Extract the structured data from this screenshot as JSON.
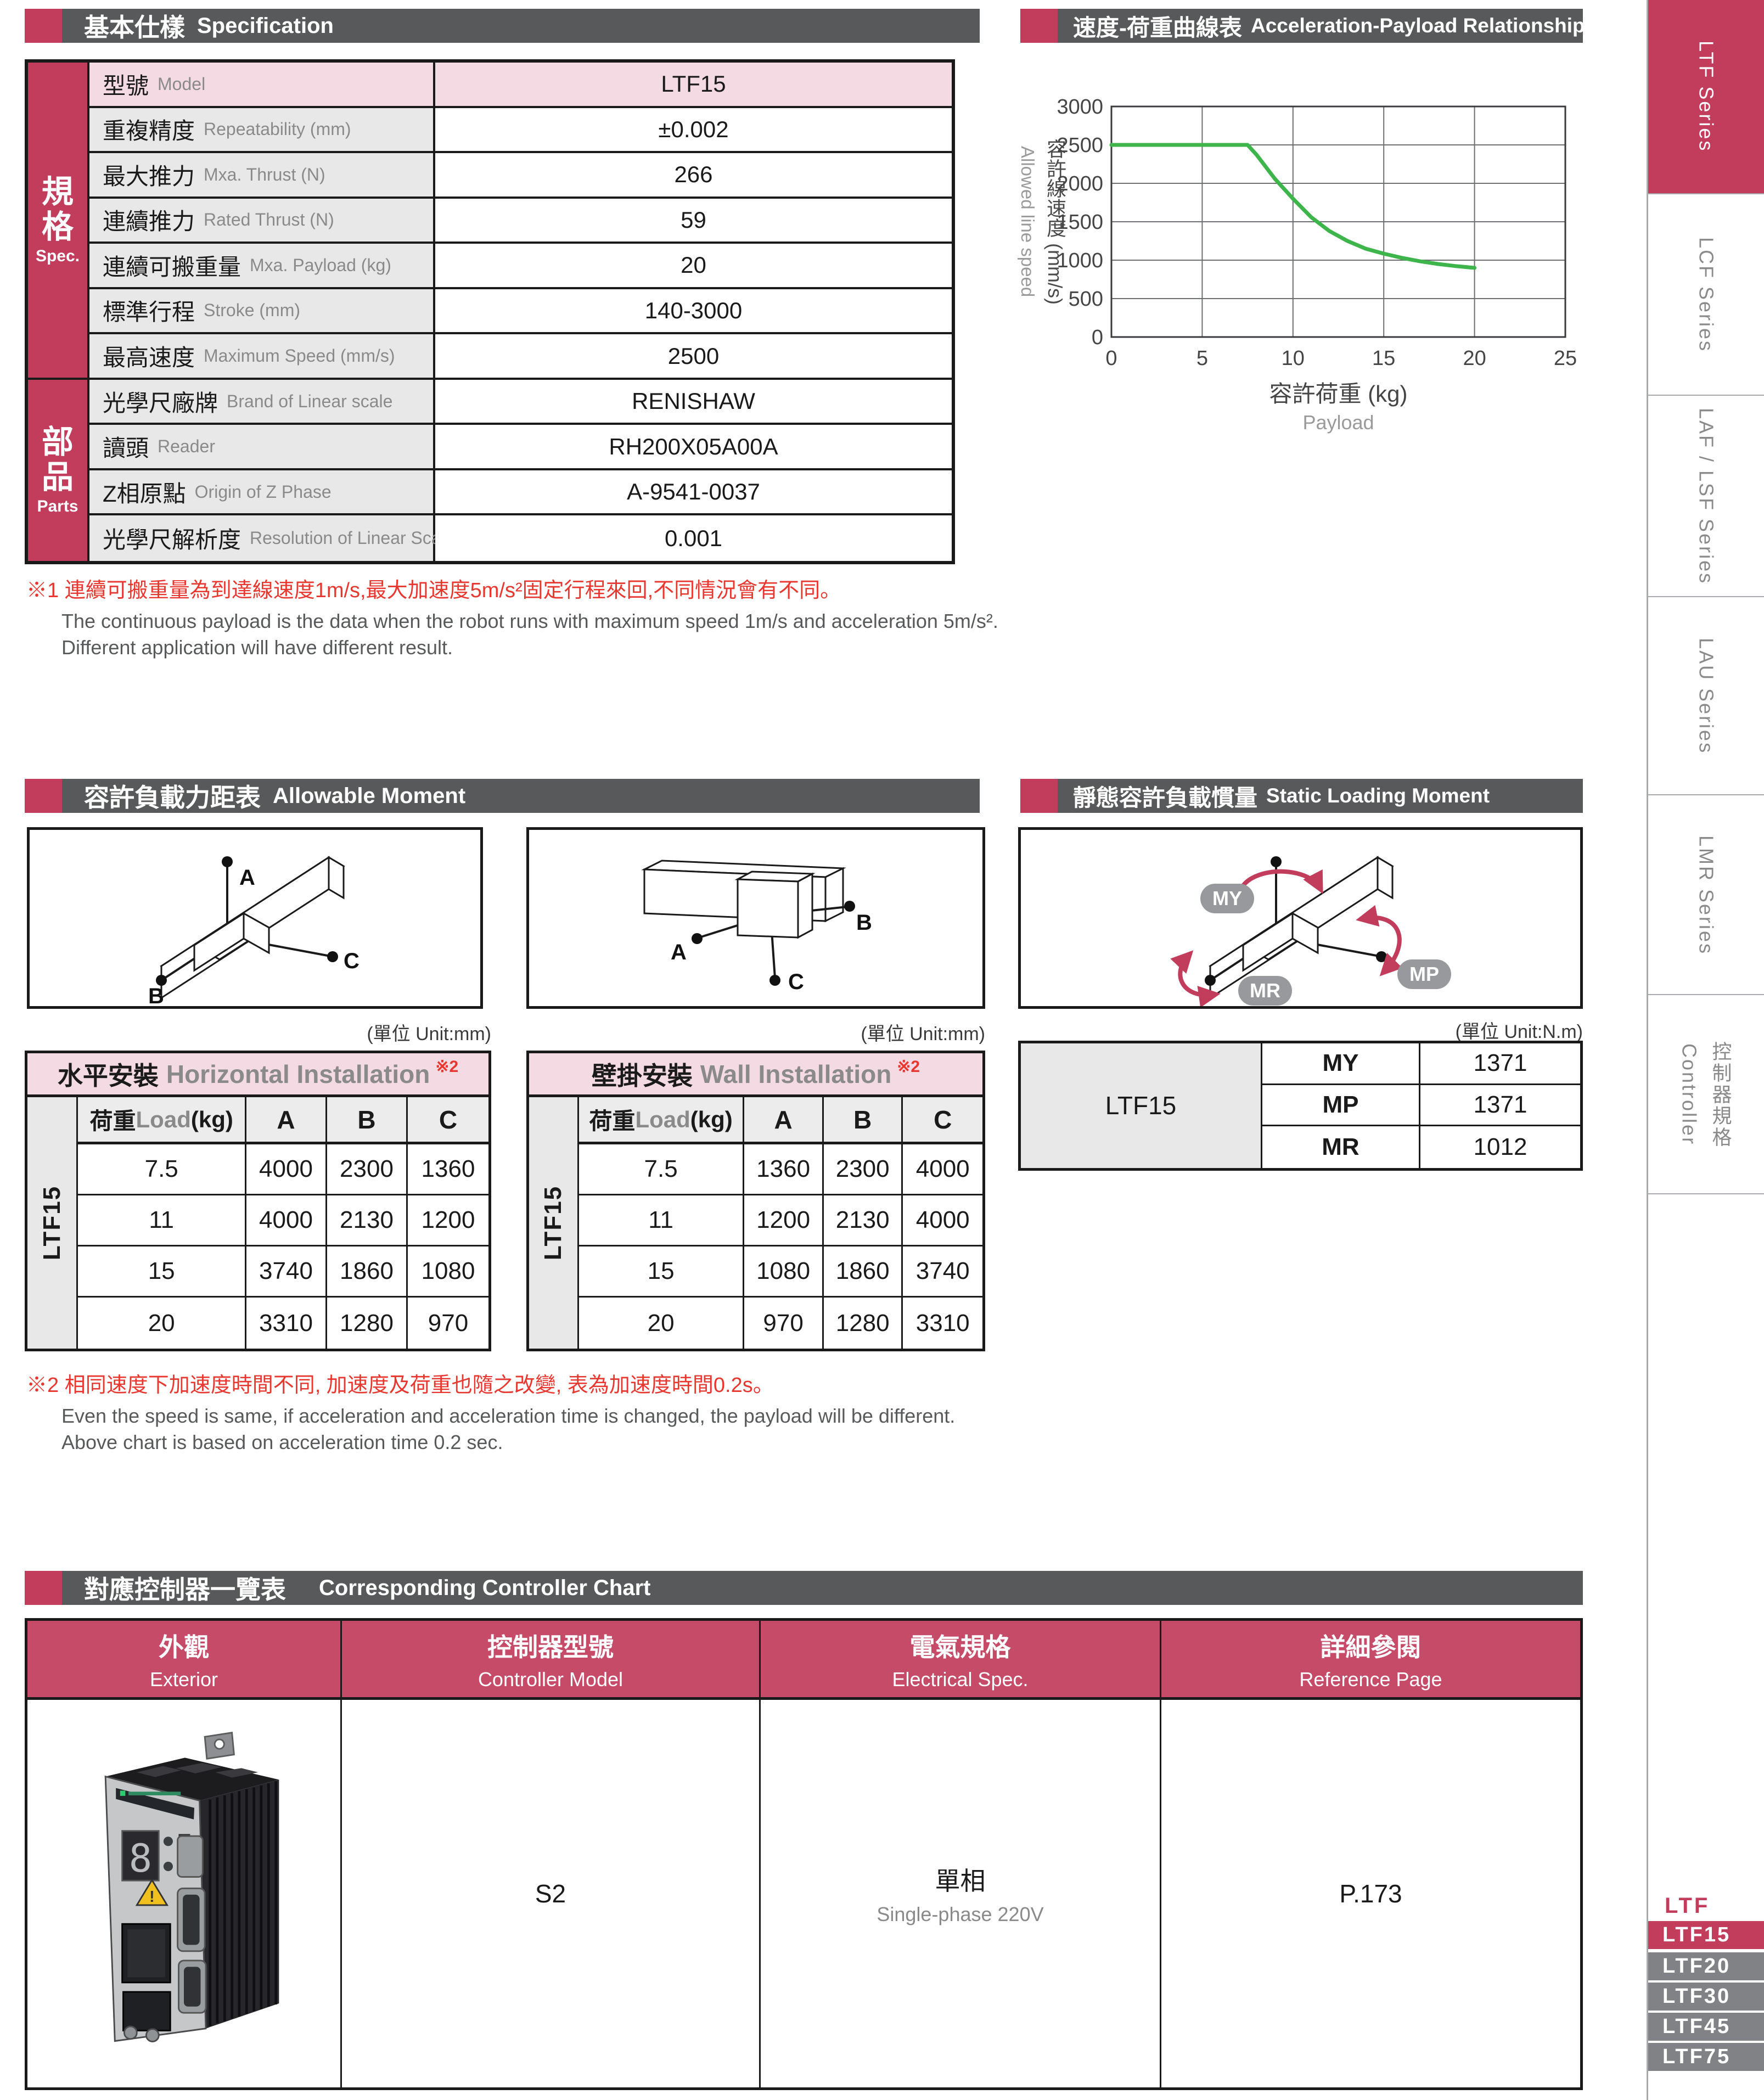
{
  "colors": {
    "accent": "#C23C5C",
    "header_bar": "#58595B",
    "table_header_pink": "#C64B68",
    "light_pink": "#F4DAE2",
    "cell_gray": "#E8E8E9",
    "tab_gray": "#808285",
    "chart_line_green": "#3DB54A",
    "note_red": "#E8372F"
  },
  "sections": {
    "spec": {
      "zh": "基本仕樣",
      "en": "Specification"
    },
    "accel": {
      "zh": "速度-荷重曲線表",
      "en": "Acceleration-Payload Relationship"
    },
    "moment": {
      "zh": "容許負載力距表",
      "en": "Allowable Moment"
    },
    "static_moment": {
      "zh": "靜態容許負載慣量",
      "en": "Static Loading Moment"
    },
    "controller": {
      "zh": "對應控制器一覽表",
      "en": "Corresponding Controller Chart"
    }
  },
  "spec_table": {
    "groups": [
      {
        "zh": "規格",
        "en": "Spec.",
        "rows": 7
      },
      {
        "zh": "部品",
        "en": "Parts",
        "rows": 4
      }
    ],
    "rows": [
      {
        "zh": "型號",
        "en": "Model",
        "value": "LTF15",
        "pink": true
      },
      {
        "zh": "重複精度",
        "en": "Repeatability (mm)",
        "value": "±0.002"
      },
      {
        "zh": "最大推力",
        "en": "Mxa. Thrust (N)",
        "value": "266"
      },
      {
        "zh": "連續推力",
        "en": "Rated Thrust (N)",
        "value": "59"
      },
      {
        "zh": "連續可搬重量",
        "en": "Mxa. Payload (kg)",
        "value": "20"
      },
      {
        "zh": "標準行程",
        "en": "Stroke (mm)",
        "value": "140-3000"
      },
      {
        "zh": "最高速度",
        "en": "Maximum Speed (mm/s)",
        "value": "2500"
      },
      {
        "zh": "光學尺廠牌",
        "en": "Brand of Linear scale",
        "value": "RENISHAW"
      },
      {
        "zh": "讀頭",
        "en": "Reader",
        "value": "RH200X05A00A"
      },
      {
        "zh": "Z相原點",
        "en": "Origin of Z Phase",
        "value": "A-9541-0037"
      },
      {
        "zh": "光學尺解析度",
        "en": "Resolution of Linear Scale (mm)",
        "value": "0.001"
      }
    ]
  },
  "note1": {
    "zh": "※1 連續可搬重量為到達線速度1m/s,最大加速度5m/s²固定行程來回,不同情況會有不同。",
    "en1": "The continuous payload is the data when the robot runs with maximum speed 1m/s and acceleration 5m/s².",
    "en2": "Different application will have different result."
  },
  "note2": {
    "zh": "※2 相同速度下加速度時間不同, 加速度及荷重也隨之改變, 表為加速度時間0.2s。",
    "en1": "Even the speed is same, if acceleration and acceleration time is changed, the payload will be different.",
    "en2": "Above chart is based on acceleration time 0.2 sec."
  },
  "chart_data": {
    "type": "line",
    "title_zh": "速度-荷重曲線表",
    "title_en": "Acceleration-Payload Relationship",
    "xlabel_zh": "容許荷重 (kg)",
    "xlabel_en": "Payload",
    "ylabel_zh": "容許線速度 (mm/s)",
    "ylabel_en": "Allowed line speed",
    "xlim": [
      0,
      25
    ],
    "ylim": [
      0,
      3000
    ],
    "xticks": [
      0,
      5,
      10,
      15,
      20,
      25
    ],
    "yticks": [
      0,
      500,
      1000,
      1500,
      2000,
      2500,
      3000
    ],
    "grid": true,
    "legend": "none",
    "series": [
      {
        "name": "LTF15 allowed line speed vs payload",
        "color": "#3DB54A",
        "points": [
          [
            0,
            2500
          ],
          [
            7.5,
            2500
          ],
          [
            8,
            2370
          ],
          [
            9,
            2060
          ],
          [
            10,
            1800
          ],
          [
            11,
            1560
          ],
          [
            12,
            1380
          ],
          [
            13,
            1250
          ],
          [
            14,
            1150
          ],
          [
            15,
            1085
          ],
          [
            16,
            1030
          ],
          [
            17,
            985
          ],
          [
            18,
            950
          ],
          [
            19,
            922
          ],
          [
            20,
            900
          ]
        ]
      }
    ]
  },
  "unit_labels": {
    "mm": "(單位  Unit:mm)",
    "nm": "(單位  Unit:N.m)"
  },
  "moment_diagram_labels": {
    "a": "A",
    "b": "B",
    "c": "C"
  },
  "static_diagram_labels": {
    "my": "MY",
    "mp": "MP",
    "mr": "MR"
  },
  "install_tables": [
    {
      "title_zh": "水平安裝",
      "title_en": "Horizontal Installation",
      "note_ref": "※2",
      "model": "LTF15",
      "col_headers": {
        "load_zh": "荷重",
        "load_en": "Load",
        "load_unit": " (kg)",
        "a": "A",
        "b": "B",
        "c": "C"
      },
      "rows": [
        [
          "7.5",
          "4000",
          "2300",
          "1360"
        ],
        [
          "11",
          "4000",
          "2130",
          "1200"
        ],
        [
          "15",
          "3740",
          "1860",
          "1080"
        ],
        [
          "20",
          "3310",
          "1280",
          "970"
        ]
      ]
    },
    {
      "title_zh": "壁掛安裝",
      "title_en": "Wall Installation",
      "note_ref": "※2",
      "model": "LTF15",
      "col_headers": {
        "load_zh": "荷重",
        "load_en": "Load",
        "load_unit": " (kg)",
        "a": "A",
        "b": "B",
        "c": "C"
      },
      "rows": [
        [
          "7.5",
          "1360",
          "2300",
          "4000"
        ],
        [
          "11",
          "1200",
          "2130",
          "4000"
        ],
        [
          "15",
          "1080",
          "1860",
          "3740"
        ],
        [
          "20",
          "970",
          "1280",
          "3310"
        ]
      ]
    }
  ],
  "static_table": {
    "model": "LTF15",
    "rows": [
      [
        "MY",
        "1371"
      ],
      [
        "MP",
        "1371"
      ],
      [
        "MR",
        "1012"
      ]
    ]
  },
  "controller_table": {
    "headers": [
      {
        "zh": "外觀",
        "en": "Exterior"
      },
      {
        "zh": "控制器型號",
        "en": "Controller Model"
      },
      {
        "zh": "電氣規格",
        "en": "Electrical Spec."
      },
      {
        "zh": "詳細參閱",
        "en": "Reference Page"
      }
    ],
    "row": {
      "controller_model": "S2",
      "electrical_zh": "單相",
      "electrical_en": "Single-phase 220V",
      "reference": "P.173"
    }
  },
  "sidebar": {
    "series_tabs": [
      {
        "label": "LTF Series",
        "active": true
      },
      {
        "label": "LCF Series",
        "active": false
      },
      {
        "label": "LAF / LSF Series",
        "active": false
      },
      {
        "label": "LAU Series",
        "active": false
      },
      {
        "label": "LMR Series",
        "active": false
      },
      {
        "label_zh": "控制器規格",
        "label_en": "Controller",
        "active": false
      }
    ],
    "family_label": "LTF",
    "model_tabs": [
      {
        "label": "LTF15",
        "active": true
      },
      {
        "label": "LTF20",
        "active": false
      },
      {
        "label": "LTF30",
        "active": false
      },
      {
        "label": "LTF45",
        "active": false
      },
      {
        "label": "LTF75",
        "active": false
      }
    ]
  }
}
